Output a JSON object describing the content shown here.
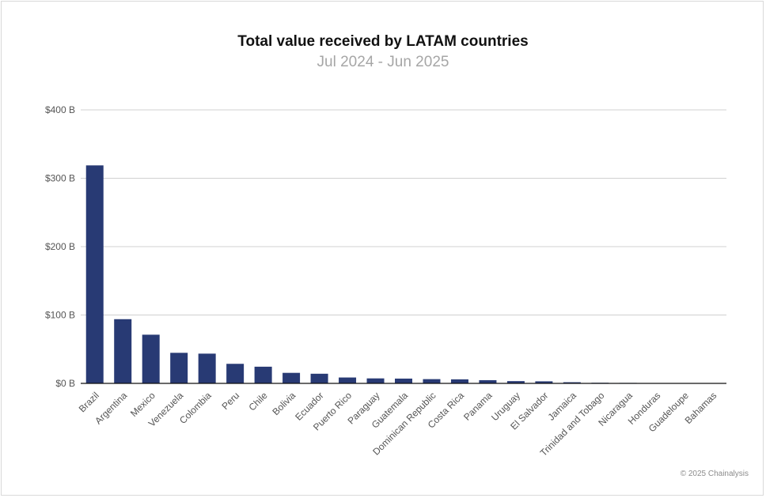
{
  "chart_data": {
    "type": "bar",
    "title": "Total value received by LATAM countries",
    "subtitle": "Jul 2024 - Jun 2025",
    "categories": [
      "Brazil",
      "Argentina",
      "Mexico",
      "Venezuela",
      "Colombia",
      "Peru",
      "Chile",
      "Bolivia",
      "Ecuador",
      "Puerto Rico",
      "Paraguay",
      "Guatemala",
      "Dominican Republic",
      "Costa Rica",
      "Panama",
      "Uruguay",
      "El Salvador",
      "Jamaica",
      "Trinidad and Tobago",
      "Nicaragua",
      "Honduras",
      "Guadeloupe",
      "Bahamas"
    ],
    "values": [
      318.8,
      93.9,
      71.2,
      44.7,
      43.5,
      28.6,
      24.4,
      15.4,
      14.1,
      8.6,
      7.3,
      7.0,
      6.2,
      5.9,
      4.7,
      3.3,
      3.0,
      1.7,
      0.9,
      0.7,
      0.5,
      0.3,
      0.2
    ],
    "yticks": [
      "$0 B",
      "$100 B",
      "$200 B",
      "$300 B",
      "$400 B"
    ],
    "ylim": [
      0,
      400
    ],
    "grid": true,
    "xlabel": "",
    "ylabel": "",
    "colors": {
      "bar": "#283a74",
      "grid": "#d0d0d0",
      "axis": "#111111",
      "tick_text": "#555555"
    }
  },
  "credit": "© 2025 Chainalysis"
}
